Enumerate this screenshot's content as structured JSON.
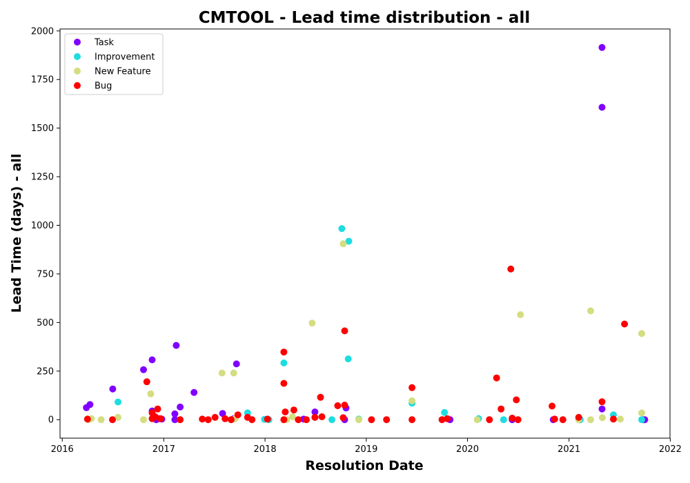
{
  "chart_data": {
    "type": "scatter",
    "title": "CMTOOL - Lead time distribution - all",
    "xlabel": "Resolution Date",
    "ylabel": "Lead Time (days) - all",
    "x_ticks": [
      "2016",
      "2017",
      "2018",
      "2019",
      "2020",
      "2021",
      "2022"
    ],
    "y_ticks": [
      "0",
      "250",
      "500",
      "750",
      "1000",
      "1250",
      "1500",
      "1750",
      "2000"
    ],
    "xlim": [
      "2015-12-24",
      "2021-12-31"
    ],
    "ylim": [
      -95,
      2010
    ],
    "legend_position": "upper left",
    "grid": false,
    "series": [
      {
        "name": "Task",
        "color": "#8000ff",
        "points": [
          [
            "2016-03-28",
            62
          ],
          [
            "2016-04-10",
            78
          ],
          [
            "2016-07-01",
            158
          ],
          [
            "2016-10-20",
            257
          ],
          [
            "2016-11-20",
            308
          ],
          [
            "2016-11-20",
            45
          ],
          [
            "2016-12-05",
            0
          ],
          [
            "2016-12-15",
            5
          ],
          [
            "2016-12-25",
            3
          ],
          [
            "2017-02-10",
            30
          ],
          [
            "2017-02-15",
            382
          ],
          [
            "2017-03-01",
            65
          ],
          [
            "2017-02-10",
            0
          ],
          [
            "2017-04-20",
            140
          ],
          [
            "2017-08-01",
            32
          ],
          [
            "2017-09-10",
            5
          ],
          [
            "2017-09-20",
            287
          ],
          [
            "2018-05-20",
            3
          ],
          [
            "2018-06-30",
            40
          ],
          [
            "2018-10-15",
            0
          ],
          [
            "2018-10-20",
            60
          ],
          [
            "2019-10-30",
            0
          ],
          [
            "2020-06-10",
            0
          ],
          [
            "2020-11-05",
            0
          ],
          [
            "2021-02-10",
            0
          ],
          [
            "2021-04-30",
            1915
          ],
          [
            "2021-04-30",
            1607
          ],
          [
            "2021-04-30",
            55
          ],
          [
            "2021-09-25",
            0
          ],
          [
            "2021-10-01",
            0
          ]
        ]
      },
      {
        "name": "Improvement",
        "color": "#1ddde0",
        "points": [
          [
            "2016-07-20",
            91
          ],
          [
            "2017-10-30",
            35
          ],
          [
            "2017-12-30",
            2
          ],
          [
            "2018-01-15",
            0
          ],
          [
            "2018-03-10",
            292
          ],
          [
            "2018-08-30",
            0
          ],
          [
            "2018-10-05",
            983
          ],
          [
            "2018-10-30",
            918
          ],
          [
            "2018-10-28",
            313
          ],
          [
            "2018-12-05",
            3
          ],
          [
            "2019-06-15",
            85
          ],
          [
            "2019-10-10",
            37
          ],
          [
            "2020-02-10",
            5
          ],
          [
            "2020-05-10",
            0
          ],
          [
            "2021-02-10",
            0
          ],
          [
            "2021-06-10",
            25
          ],
          [
            "2021-09-20",
            0
          ]
        ]
      },
      {
        "name": "New Feature",
        "color": "#d4dd80",
        "points": [
          [
            "2016-04-05",
            0
          ],
          [
            "2016-04-15",
            5
          ],
          [
            "2016-05-20",
            0
          ],
          [
            "2016-07-20",
            12
          ],
          [
            "2016-10-20",
            0
          ],
          [
            "2016-11-15",
            133
          ],
          [
            "2017-07-30",
            240
          ],
          [
            "2017-09-10",
            240
          ],
          [
            "2017-09-15",
            5
          ],
          [
            "2018-03-20",
            0
          ],
          [
            "2018-04-10",
            15
          ],
          [
            "2018-06-20",
            497
          ],
          [
            "2018-10-10",
            905
          ],
          [
            "2018-12-05",
            0
          ],
          [
            "2019-06-15",
            97
          ],
          [
            "2020-02-05",
            0
          ],
          [
            "2020-07-10",
            540
          ],
          [
            "2021-02-05",
            0
          ],
          [
            "2021-03-20",
            0
          ],
          [
            "2021-03-20",
            560
          ],
          [
            "2021-05-01",
            10
          ],
          [
            "2021-07-05",
            3
          ],
          [
            "2021-09-20",
            35
          ],
          [
            "2021-09-20",
            443
          ]
        ]
      },
      {
        "name": "Bug",
        "color": "#ff0000",
        "points": [
          [
            "2016-04-01",
            3
          ],
          [
            "2016-06-30",
            0
          ],
          [
            "2016-11-01",
            195
          ],
          [
            "2016-11-20",
            35
          ],
          [
            "2016-11-20",
            5
          ],
          [
            "2016-12-01",
            15
          ],
          [
            "2016-12-10",
            55
          ],
          [
            "2016-12-20",
            5
          ],
          [
            "2017-03-01",
            0
          ],
          [
            "2017-05-20",
            3
          ],
          [
            "2017-06-10",
            0
          ],
          [
            "2017-07-05",
            12
          ],
          [
            "2017-08-10",
            5
          ],
          [
            "2017-09-01",
            0
          ],
          [
            "2017-09-25",
            25
          ],
          [
            "2017-10-30",
            12
          ],
          [
            "2017-11-15",
            0
          ],
          [
            "2018-01-10",
            3
          ],
          [
            "2018-03-10",
            0
          ],
          [
            "2018-03-10",
            348
          ],
          [
            "2018-03-10",
            187
          ],
          [
            "2018-03-15",
            40
          ],
          [
            "2018-04-15",
            50
          ],
          [
            "2018-05-01",
            0
          ],
          [
            "2018-05-30",
            0
          ],
          [
            "2018-06-30",
            12
          ],
          [
            "2018-07-20",
            115
          ],
          [
            "2018-07-25",
            15
          ],
          [
            "2018-09-20",
            72
          ],
          [
            "2018-10-10",
            10
          ],
          [
            "2018-10-15",
            457
          ],
          [
            "2018-10-15",
            75
          ],
          [
            "2019-01-20",
            0
          ],
          [
            "2019-03-15",
            0
          ],
          [
            "2019-06-15",
            165
          ],
          [
            "2019-06-15",
            0
          ],
          [
            "2019-10-01",
            0
          ],
          [
            "2019-10-20",
            5
          ],
          [
            "2020-03-20",
            0
          ],
          [
            "2020-04-15",
            215
          ],
          [
            "2020-05-01",
            55
          ],
          [
            "2020-06-05",
            775
          ],
          [
            "2020-06-10",
            8
          ],
          [
            "2020-06-25",
            102
          ],
          [
            "2020-07-01",
            0
          ],
          [
            "2020-11-01",
            70
          ],
          [
            "2020-11-10",
            3
          ],
          [
            "2020-12-10",
            0
          ],
          [
            "2021-02-05",
            12
          ],
          [
            "2021-04-30",
            92
          ],
          [
            "2021-06-10",
            3
          ],
          [
            "2021-07-20",
            492
          ]
        ]
      }
    ]
  }
}
